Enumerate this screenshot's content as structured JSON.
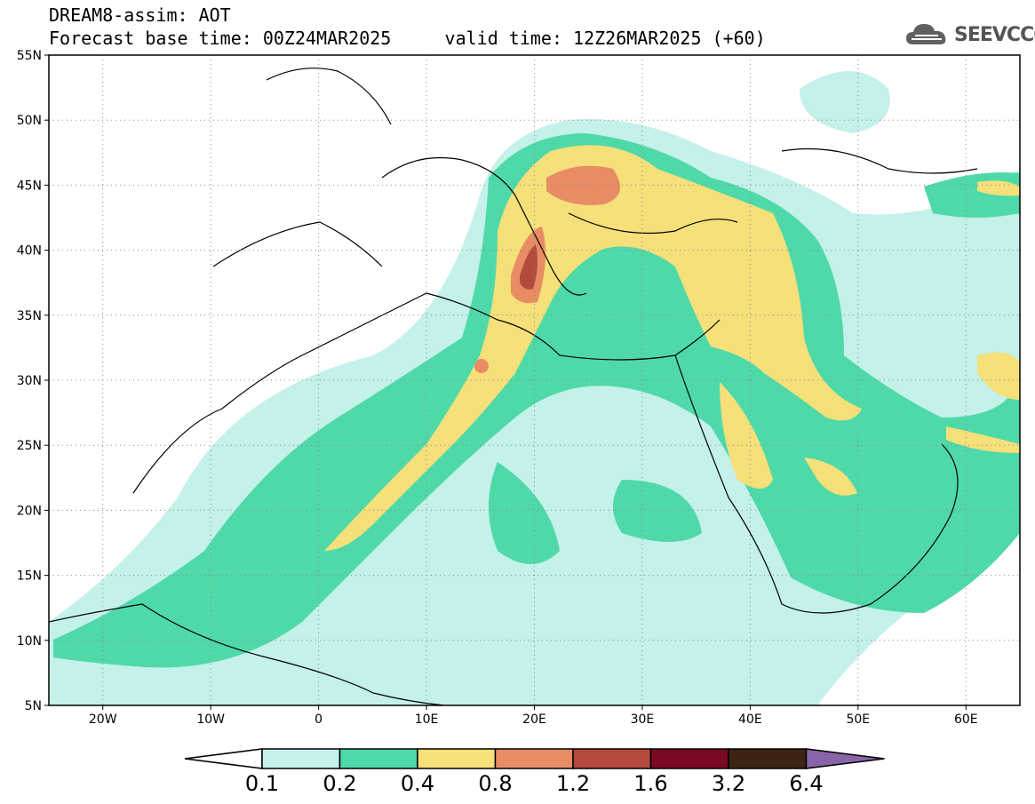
{
  "header": {
    "title": "DREAM8-assim: AOT",
    "base_time": "Forecast base time: 00Z24MAR2025",
    "valid_time": "valid time: 12Z26MAR2025 (+60)"
  },
  "logo": {
    "text": "SEEVCCC",
    "icon": "cloud-icon"
  },
  "map": {
    "lat_labels": [
      "55N",
      "50N",
      "45N",
      "40N",
      "35N",
      "30N",
      "25N",
      "20N",
      "15N",
      "10N",
      "5N"
    ],
    "lon_labels": [
      "20W",
      "10W",
      "0",
      "10E",
      "20E",
      "30E",
      "40E",
      "50E",
      "60E"
    ],
    "lon_range": [
      -25,
      65
    ],
    "lat_range": [
      5,
      55
    ],
    "gridlines": true
  },
  "colorbar": {
    "labels": [
      "0.1",
      "0.2",
      "0.4",
      "0.8",
      "1.2",
      "1.6",
      "3.2",
      "6.4"
    ],
    "colors": [
      "#c4f1ea",
      "#4fd9a8",
      "#f5e07a",
      "#e88c64",
      "#b34a3c",
      "#7a0a24",
      "#3d2412",
      "#8a64a8"
    ],
    "under_color": "#ffffff"
  },
  "colors": {
    "c1": "#c4f1ea",
    "c2": "#4fd9a8",
    "c3": "#f5e07a",
    "c4": "#e88c64",
    "c5": "#b34a3c"
  }
}
